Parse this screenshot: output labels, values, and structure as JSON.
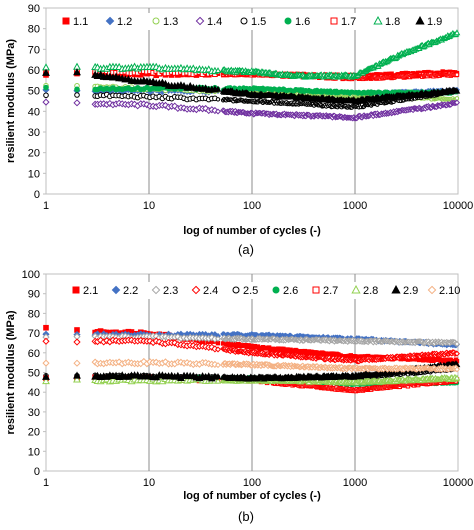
{
  "chart_data": [
    {
      "type": "scatter",
      "panel_label": "(a)",
      "xlabel": "log of number of cycles (-)",
      "ylabel": "resilient modulus (MPa)",
      "x_scale": "log",
      "xlim": [
        1,
        10000
      ],
      "ylim": [
        0,
        90
      ],
      "x_ticks": [
        "1",
        "10",
        "100",
        "1000",
        "10000"
      ],
      "y_ticks": [
        "0",
        "10",
        "20",
        "30",
        "40",
        "50",
        "60",
        "70",
        "80",
        "90"
      ],
      "grid": "vertical lines at decades",
      "legend_position": "top",
      "series": [
        {
          "name": "1.1",
          "marker": "square-filled",
          "color": "#ff0000",
          "x": [
            1,
            2,
            10,
            100,
            1000,
            10000
          ],
          "y": [
            58,
            58,
            58,
            58,
            57,
            59
          ]
        },
        {
          "name": "1.2",
          "marker": "diamond-filled",
          "color": "#4472c4",
          "x": [
            1,
            2,
            10,
            100,
            1000,
            10000
          ],
          "y": [
            50,
            50,
            50,
            50,
            48,
            50
          ]
        },
        {
          "name": "1.3",
          "marker": "circle-open",
          "color": "#92d050",
          "x": [
            1,
            2,
            10,
            100,
            1000,
            10000
          ],
          "y": [
            52,
            52,
            51,
            49,
            47,
            46
          ]
        },
        {
          "name": "1.4",
          "marker": "diamond-open",
          "color": "#7030a0",
          "x": [
            1,
            2,
            10,
            100,
            1000,
            10000
          ],
          "y": [
            44,
            44,
            43,
            39,
            37,
            44
          ]
        },
        {
          "name": "1.5",
          "marker": "circle-open",
          "color": "#000000",
          "x": [
            1,
            2,
            10,
            100,
            1000,
            10000
          ],
          "y": [
            48,
            48,
            47,
            45,
            42,
            50
          ]
        },
        {
          "name": "1.6",
          "marker": "circle-filled",
          "color": "#00b050",
          "x": [
            1,
            2,
            10,
            100,
            1000,
            10000
          ],
          "y": [
            51,
            51,
            51,
            51,
            49,
            49
          ]
        },
        {
          "name": "1.7",
          "marker": "square-open",
          "color": "#ff0000",
          "x": [
            1,
            2,
            10,
            100,
            1000,
            10000
          ],
          "y": [
            59,
            59,
            59,
            58,
            56,
            58
          ]
        },
        {
          "name": "1.8",
          "marker": "triangle-open",
          "color": "#00b050",
          "x": [
            1,
            2,
            10,
            100,
            300,
            1000,
            3000,
            10000
          ],
          "y": [
            61,
            61,
            61,
            59,
            57,
            57,
            68,
            78
          ]
        },
        {
          "name": "1.9",
          "marker": "triangle-filled",
          "color": "#000000",
          "x": [
            1,
            2,
            10,
            100,
            1000,
            10000
          ],
          "y": [
            59,
            59,
            54,
            48,
            45,
            50
          ]
        }
      ]
    },
    {
      "type": "scatter",
      "panel_label": "(b)",
      "xlabel": "log of number of cycles (-)",
      "ylabel": "resilient modulus (MPa)",
      "x_scale": "log",
      "xlim": [
        1,
        10000
      ],
      "ylim": [
        0,
        100
      ],
      "x_ticks": [
        "1",
        "10",
        "100",
        "1000",
        "10000"
      ],
      "y_ticks": [
        "0",
        "10",
        "20",
        "30",
        "40",
        "50",
        "60",
        "70",
        "80",
        "90",
        "100"
      ],
      "grid": "vertical lines at decades",
      "legend_position": "top",
      "series": [
        {
          "name": "2.1",
          "marker": "square-filled",
          "color": "#ff0000",
          "x": [
            1,
            2,
            10,
            100,
            1000,
            10000
          ],
          "y": [
            73,
            71,
            70,
            63,
            58,
            56
          ]
        },
        {
          "name": "2.2",
          "marker": "diamond-filled",
          "color": "#4472c4",
          "x": [
            1,
            2,
            10,
            100,
            1000,
            10000
          ],
          "y": [
            69,
            69,
            69,
            69,
            67,
            64
          ]
        },
        {
          "name": "2.3",
          "marker": "diamond-open",
          "color": "#a6a6a6",
          "x": [
            1,
            2,
            10,
            100,
            1000,
            10000
          ],
          "y": [
            68,
            68,
            68,
            67,
            66,
            65
          ]
        },
        {
          "name": "2.4",
          "marker": "diamond-open",
          "color": "#ff0000",
          "x": [
            1,
            2,
            10,
            100,
            1000,
            10000
          ],
          "y": [
            66,
            66,
            66,
            60,
            56,
            60
          ]
        },
        {
          "name": "2.5",
          "marker": "circle-open",
          "color": "#000000",
          "x": [
            1,
            2,
            10,
            100,
            1000,
            10000
          ],
          "y": [
            48,
            48,
            48,
            47,
            47,
            52
          ]
        },
        {
          "name": "2.6",
          "marker": "circle-filled",
          "color": "#00b050",
          "x": [
            1,
            2,
            10,
            100,
            1000,
            10000
          ],
          "y": [
            47,
            47,
            47,
            47,
            44,
            45
          ]
        },
        {
          "name": "2.7",
          "marker": "square-open",
          "color": "#ff0000",
          "x": [
            1,
            2,
            10,
            100,
            1000,
            10000
          ],
          "y": [
            47,
            47,
            47,
            46,
            41,
            46
          ]
        },
        {
          "name": "2.8",
          "marker": "triangle-open",
          "color": "#92d050",
          "x": [
            1,
            2,
            10,
            100,
            1000,
            10000
          ],
          "y": [
            46,
            46,
            46,
            46,
            45,
            47
          ]
        },
        {
          "name": "2.9",
          "marker": "triangle-filled",
          "color": "#000000",
          "x": [
            1,
            2,
            10,
            100,
            1000,
            10000
          ],
          "y": [
            48,
            48,
            48,
            47,
            48,
            54
          ]
        },
        {
          "name": "2.10",
          "marker": "diamond-open",
          "color": "#f4b183",
          "x": [
            1,
            2,
            10,
            100,
            1000,
            10000
          ],
          "y": [
            55,
            55,
            55,
            54,
            52,
            52
          ]
        }
      ]
    }
  ]
}
